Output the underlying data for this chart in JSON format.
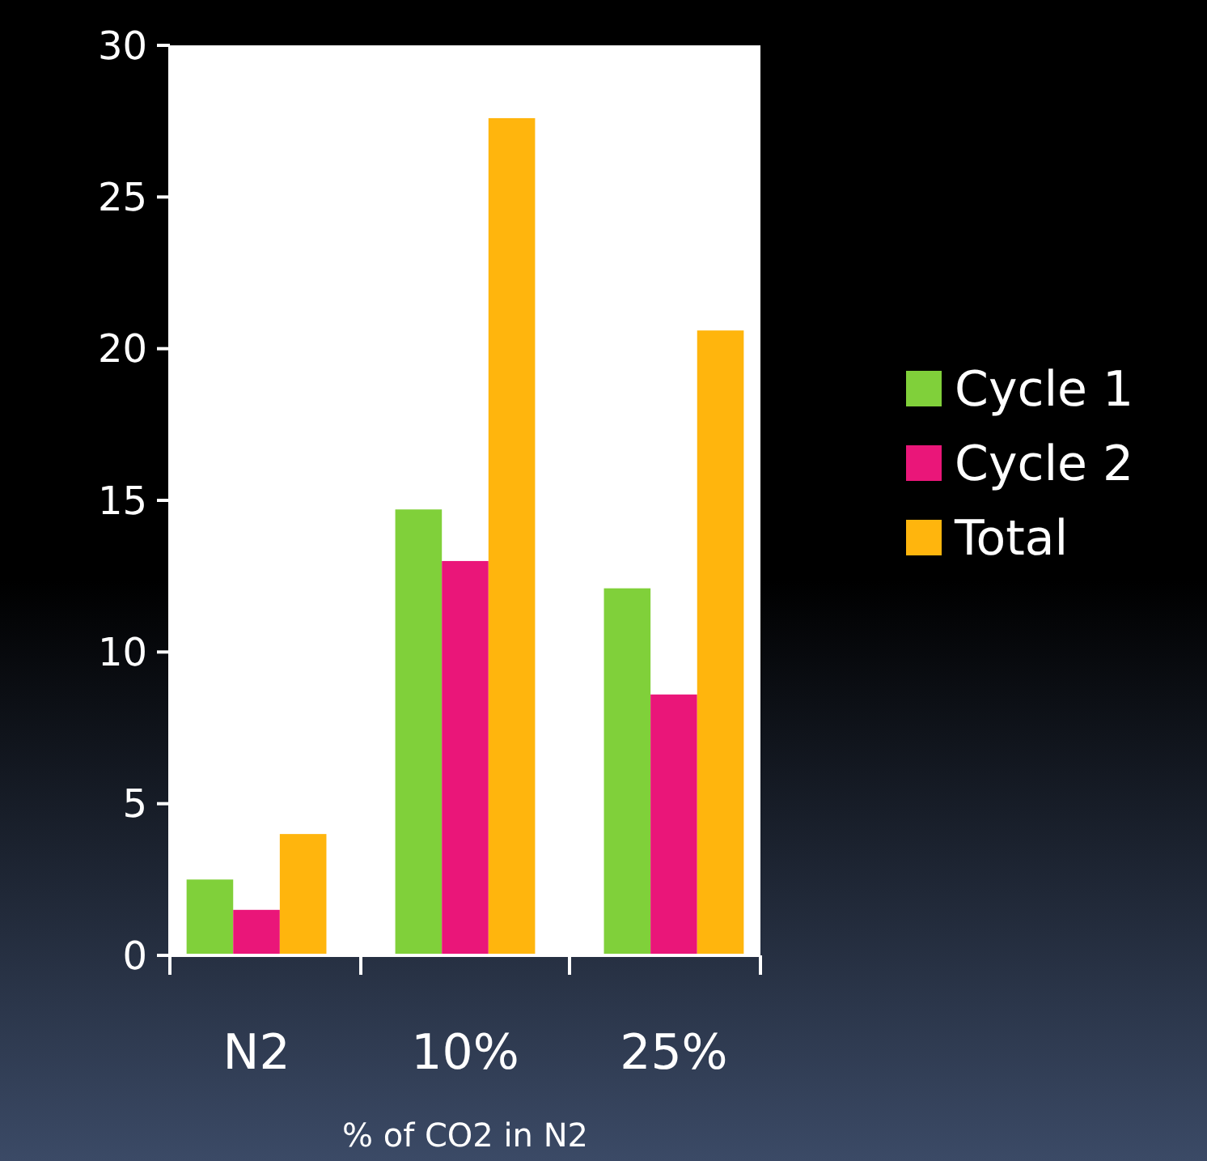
{
  "chart_data": {
    "type": "bar",
    "xlabel": "% of CO2 in N2",
    "categories": [
      "N2",
      "10%",
      "25%"
    ],
    "series": [
      {
        "name": "Cycle 1",
        "color": "#80d03a",
        "values": [
          2.5,
          14.7,
          12.1
        ]
      },
      {
        "name": "Cycle 2",
        "color": "#ea1679",
        "values": [
          1.5,
          13,
          8.6
        ]
      },
      {
        "name": "Total",
        "color": "#ffb50d",
        "values": [
          4,
          27.6,
          20.6
        ]
      }
    ],
    "ylim": [
      0,
      30
    ],
    "yticks": [
      0,
      5,
      10,
      15,
      20,
      25,
      30
    ],
    "grid": false,
    "legend": "right"
  }
}
